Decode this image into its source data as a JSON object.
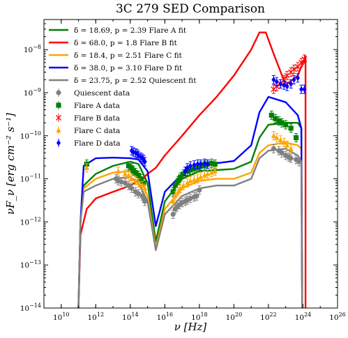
{
  "chart_data": {
    "type": "scatter",
    "title": "3C 279 SED Comparison",
    "xlabel": "ν [Hz]",
    "ylabel": "νF_ν [erg cm⁻² s⁻¹]",
    "x_scale": "log",
    "y_scale": "log",
    "xlim": [
      1000000000.0,
      1e+26
    ],
    "ylim": [
      1e-14,
      5e-08
    ],
    "grid": false,
    "legend_position": "top-left",
    "x_tick_labels": [
      "10^10",
      "10^12",
      "10^14",
      "10^16",
      "10^18",
      "10^20",
      "10^22",
      "10^24",
      "10^26"
    ],
    "y_tick_labels": [
      "10^-14",
      "10^-13",
      "10^-12",
      "10^-11",
      "10^-10",
      "10^-9",
      "10^-8"
    ],
    "model_fits": [
      {
        "name": "δ = 18.69, p = 2.39 Flare A fit",
        "color": "#008000",
        "points": [
          [
            100000000000.0,
            1e-14
          ],
          [
            130000000000.0,
            1e-12
          ],
          [
            200000000000.0,
            7e-12
          ],
          [
            1000000000000.0,
            1.3e-11
          ],
          [
            10000000000000.0,
            2e-11
          ],
          [
            100000000000000.0,
            2.5e-11
          ],
          [
            300000000000000.0,
            2.2e-11
          ],
          [
            1000000000000000.0,
            8e-12
          ],
          [
            3000000000000000.0,
            3.5e-13
          ],
          [
            1e+16,
            3e-12
          ],
          [
            1e+17,
            1e-11
          ],
          [
            1e+18,
            1.5e-11
          ],
          [
            1e+19,
            1.6e-11
          ],
          [
            1e+20,
            1.7e-11
          ],
          [
            1e+21,
            2.5e-11
          ],
          [
            3e+21,
            9e-11
          ],
          [
            1e+22,
            1.8e-10
          ],
          [
            1e+23,
            2e-10
          ],
          [
            5e+23,
            2e-10
          ],
          [
            8e+23,
            1.5e-10
          ],
          [
            9e+23,
            1e-14
          ]
        ]
      },
      {
        "name": "δ = 68.0, p = 1.8 Flare B fit",
        "color": "#ff0000",
        "points": [
          [
            100000000000.0,
            1e-14
          ],
          [
            130000000000.0,
            5e-13
          ],
          [
            300000000000.0,
            2e-12
          ],
          [
            1000000000000.0,
            3.5e-12
          ],
          [
            10000000000000.0,
            5e-12
          ],
          [
            100000000000000.0,
            7e-12
          ],
          [
            500000000000000.0,
            1e-11
          ],
          [
            1000000000000000.0,
            1.3e-11
          ],
          [
            3000000000000000.0,
            1.8e-11
          ],
          [
            1e+16,
            3.5e-11
          ],
          [
            1e+17,
            1e-10
          ],
          [
            1e+18,
            3e-10
          ],
          [
            1e+19,
            8e-10
          ],
          [
            1e+20,
            2.5e-09
          ],
          [
            1e+21,
            1e-08
          ],
          [
            3e+21,
            2.5e-08
          ],
          [
            7e+21,
            2.5e-08
          ],
          [
            2e+22,
            8e-09
          ],
          [
            1e+23,
            1.5e-09
          ],
          [
            5e+23,
            2.5e-09
          ],
          [
            1.4e+24,
            7e-09
          ],
          [
            1.4e+24,
            1e-14
          ]
        ]
      },
      {
        "name": "δ = 18.4, p = 2.51 Flare C fit",
        "color": "#ffa500",
        "points": [
          [
            100000000000.0,
            1e-14
          ],
          [
            130000000000.0,
            1e-12
          ],
          [
            200000000000.0,
            6e-12
          ],
          [
            1000000000000.0,
            1e-11
          ],
          [
            10000000000000.0,
            1.4e-11
          ],
          [
            100000000000000.0,
            1.5e-11
          ],
          [
            300000000000000.0,
            1.2e-11
          ],
          [
            1000000000000000.0,
            4e-12
          ],
          [
            3000000000000000.0,
            2.5e-13
          ],
          [
            1e+16,
            2e-12
          ],
          [
            1e+17,
            6e-12
          ],
          [
            1e+18,
            9e-12
          ],
          [
            1e+19,
            1e-11
          ],
          [
            1e+20,
            1e-11
          ],
          [
            1e+21,
            1.4e-11
          ],
          [
            3e+21,
            4e-11
          ],
          [
            1e+22,
            6e-11
          ],
          [
            1e+23,
            7e-11
          ],
          [
            5e+23,
            6e-11
          ],
          [
            8e+23,
            5e-11
          ],
          [
            9e+23,
            1e-14
          ]
        ]
      },
      {
        "name": "δ = 38.0, p = 3.10 Flare D fit",
        "color": "#0000ff",
        "points": [
          [
            100000000000.0,
            1e-14
          ],
          [
            130000000000.0,
            1e-12
          ],
          [
            200000000000.0,
            2e-11
          ],
          [
            1000000000000.0,
            3e-11
          ],
          [
            10000000000000.0,
            3.1e-11
          ],
          [
            100000000000000.0,
            3e-11
          ],
          [
            300000000000000.0,
            2.8e-11
          ],
          [
            1000000000000000.0,
            1.5e-11
          ],
          [
            3000000000000000.0,
            8e-13
          ],
          [
            1e+16,
            5e-12
          ],
          [
            1e+17,
            1.3e-11
          ],
          [
            1e+18,
            2e-11
          ],
          [
            1e+19,
            2.3e-11
          ],
          [
            1e+20,
            2.6e-11
          ],
          [
            1e+21,
            6e-11
          ],
          [
            3e+21,
            3.5e-10
          ],
          [
            1e+22,
            8e-10
          ],
          [
            1e+23,
            6e-10
          ],
          [
            5e+23,
            3e-10
          ],
          [
            8e+23,
            1.5e-10
          ],
          [
            9e+23,
            1e-14
          ]
        ]
      },
      {
        "name": "δ = 23.75, p = 2.52 Quiescent fit",
        "color": "#808080",
        "points": [
          [
            100000000000.0,
            1e-14
          ],
          [
            130000000000.0,
            1e-12
          ],
          [
            200000000000.0,
            5e-12
          ],
          [
            1000000000000.0,
            7e-12
          ],
          [
            10000000000000.0,
            1e-11
          ],
          [
            100000000000000.0,
            1.1e-11
          ],
          [
            300000000000000.0,
            8e-12
          ],
          [
            1000000000000000.0,
            3e-12
          ],
          [
            3000000000000000.0,
            2.2e-13
          ],
          [
            1e+16,
            1.5e-12
          ],
          [
            1e+17,
            4e-12
          ],
          [
            1e+18,
            6e-12
          ],
          [
            1e+19,
            7e-12
          ],
          [
            1e+20,
            7e-12
          ],
          [
            1e+21,
            1e-11
          ],
          [
            3e+21,
            3e-11
          ],
          [
            1e+22,
            4.5e-11
          ],
          [
            1e+23,
            5e-11
          ],
          [
            5e+23,
            3.5e-11
          ],
          [
            8e+23,
            2.5e-11
          ],
          [
            9e+23,
            1e-14
          ]
        ]
      }
    ],
    "data_sets": [
      {
        "name": "Quiescent data",
        "color": "#808080",
        "marker": "circle",
        "x": [
          15000000000000.0,
          20000000000000.0,
          30000000000000.0,
          50000000000000.0,
          80000000000000.0,
          120000000000000.0,
          200000000000000.0,
          300000000000000.0,
          500000000000000.0,
          600000000000000.0,
          700000000000000.0,
          3e+16,
          4e+16,
          5e+16,
          7e+16,
          1e+17,
          1.5e+17,
          2e+17,
          3e+17,
          5e+17,
          7e+17,
          1e+18,
          2e+22,
          4e+22,
          6e+22,
          1e+23,
          1.5e+23,
          2e+23,
          4e+23,
          6e+23
        ],
        "y": [
          1e-11,
          9e-12,
          8.5e-12,
          8e-12,
          7e-12,
          6e-12,
          5e-12,
          4.5e-12,
          4e-12,
          3.5e-12,
          3e-12,
          1.5e-12,
          2e-12,
          2.2e-12,
          2.5e-12,
          2.8e-12,
          3e-12,
          3.2e-12,
          3.5e-12,
          3.8e-12,
          4e-12,
          5.5e-12,
          5e-11,
          4.5e-11,
          4e-11,
          3.5e-11,
          3.2e-11,
          3e-11,
          2.8e-11,
          2.5e-11
        ]
      },
      {
        "name": "Flare A data",
        "color": "#008000",
        "marker": "square",
        "x": [
          300000000000.0,
          80000000000000.0,
          120000000000000.0,
          150000000000000.0,
          200000000000000.0,
          300000000000000.0,
          400000000000000.0,
          600000000000000.0,
          3e+16,
          4e+16,
          6e+16,
          8e+16,
          1.2e+17,
          2e+17,
          3e+17,
          5e+17,
          8e+17,
          1.2e+18,
          2e+18,
          3e+18,
          5e+18,
          8e+18,
          1.5e+22,
          2.5e+22,
          4e+22,
          6e+22,
          1e+23,
          2e+23,
          4e+23
        ],
        "y": [
          2.2e-11,
          2e-11,
          1.8e-11,
          1.5e-11,
          1.4e-11,
          1.2e-11,
          1e-11,
          8e-12,
          5e-12,
          7e-12,
          9e-12,
          1.1e-11,
          1.3e-11,
          1.5e-11,
          1.6e-11,
          1.7e-11,
          1.8e-11,
          2e-11,
          2.1e-11,
          2.2e-11,
          2.3e-11,
          2.2e-11,
          3e-10,
          2.5e-10,
          2.2e-10,
          2e-10,
          1.8e-10,
          1.5e-10,
          9e-11
        ]
      },
      {
        "name": "Flare B data",
        "color": "#ff0000",
        "marker": "x",
        "x": [
          2e+22,
          3e+22,
          5e+22,
          8e+22,
          1.2e+23,
          2e+23,
          3e+23,
          5e+23,
          8e+23,
          1.2e+24
        ],
        "y": [
          1.2e-09,
          1.4e-09,
          1.6e-09,
          2e-09,
          2.5e-09,
          3e-09,
          3.5e-09,
          4e-09,
          5e-09,
          6e-09
        ]
      },
      {
        "name": "Flare C data",
        "color": "#ffa500",
        "marker": "triangle",
        "x": [
          300000000000.0,
          20000000000000.0,
          50000000000000.0,
          80000000000000.0,
          120000000000000.0,
          200000000000000.0,
          300000000000000.0,
          500000000000000.0,
          700000000000000.0,
          3e+16,
          4e+16,
          6e+16,
          8e+16,
          1.2e+17,
          2e+17,
          3e+17,
          5e+17,
          8e+17,
          1.2e+18,
          2e+18,
          3e+18,
          5e+18,
          8e+18,
          2e+22,
          3e+22,
          5e+22,
          8e+22,
          1.2e+23,
          2e+23
        ],
        "y": [
          1.8e-11,
          1.5e-11,
          1.3e-11,
          1.2e-11,
          1e-11,
          9e-12,
          8e-12,
          7e-12,
          6e-12,
          3e-12,
          4e-12,
          5e-12,
          6e-12,
          7e-12,
          8e-12,
          9e-12,
          9.5e-12,
          1e-11,
          1.1e-11,
          1.2e-11,
          1.3e-11,
          1.4e-11,
          1.5e-11,
          1e-10,
          9e-11,
          8e-11,
          7e-11,
          6e-11,
          5e-11
        ]
      },
      {
        "name": "Flare D data",
        "color": "#0000ff",
        "marker": "diamond",
        "x": [
          120000000000000.0,
          150000000000000.0,
          200000000000000.0,
          250000000000000.0,
          300000000000000.0,
          400000000000000.0,
          500000000000000.0,
          600000000000000.0,
          700000000000000.0,
          1.5e+17,
          2e+17,
          3e+17,
          5e+17,
          8e+17,
          1.2e+18,
          2e+18,
          3e+18,
          2e+22,
          3e+22,
          5e+22,
          8e+22,
          1.2e+23,
          2e+23,
          3e+23,
          5e+23,
          8e+23,
          1.2e+24
        ],
        "y": [
          4.5e-11,
          4.2e-11,
          4e-11,
          3.8e-11,
          3.5e-11,
          3.2e-11,
          3e-11,
          2.8e-11,
          2.5e-11,
          1.5e-11,
          1.8e-11,
          2e-11,
          2.1e-11,
          2.2e-11,
          2.2e-11,
          2.3e-11,
          2.2e-11,
          2e-09,
          1.8e-09,
          1.6e-09,
          1.5e-09,
          1.4e-09,
          1.6e-09,
          2e-09,
          2.2e-09,
          1.2e-09,
          1.2e-09
        ]
      }
    ]
  }
}
